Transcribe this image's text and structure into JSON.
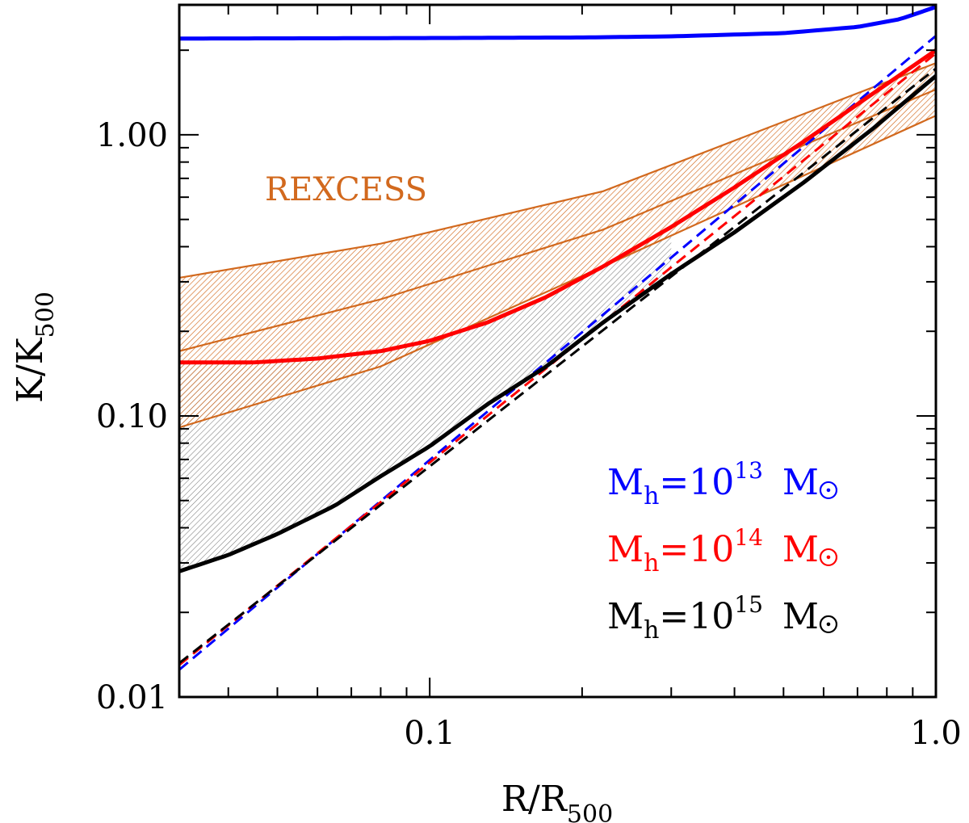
{
  "chart_data": {
    "type": "line",
    "xlabel": {
      "main": "R/R",
      "sub": "500"
    },
    "ylabel": {
      "main": "K/K",
      "sub": "500"
    },
    "x_scale": "log",
    "y_scale": "log",
    "xlim": [
      0.032,
      1.0
    ],
    "ylim": [
      0.01,
      2.9
    ],
    "x_ticks": [
      {
        "value": 0.1,
        "label": "0.1"
      },
      {
        "value": 1.0,
        "label": "1.0"
      }
    ],
    "y_ticks": [
      {
        "value": 0.01,
        "label": "0.01"
      },
      {
        "value": 0.1,
        "label": "0.10"
      },
      {
        "value": 1.0,
        "label": "1.00"
      }
    ],
    "annotation": {
      "text": "REXCESS",
      "color": "#d2691e"
    },
    "rexcess": {
      "color": "#d2691e",
      "x": [
        0.032,
        0.08,
        0.22,
        1.0
      ],
      "upper": [
        0.31,
        0.41,
        0.63,
        1.8
      ],
      "median": [
        0.17,
        0.26,
        0.46,
        1.45
      ],
      "lower": [
        0.091,
        0.15,
        0.34,
        1.17
      ]
    },
    "series": [
      {
        "name": "M_h=10^13 M_sun",
        "color": "#0000ff",
        "solid": {
          "x": [
            0.032,
            0.1,
            0.2,
            0.3,
            0.5,
            0.7,
            0.85,
            1.0
          ],
          "y": [
            2.2,
            2.21,
            2.22,
            2.24,
            2.3,
            2.42,
            2.58,
            2.85
          ]
        },
        "dashed": {
          "x": [
            0.032,
            1.0
          ],
          "y": [
            0.0125,
            2.25
          ]
        }
      },
      {
        "name": "M_h=10^14 M_sun",
        "color": "#ff0000",
        "solid": {
          "x": [
            0.032,
            0.045,
            0.06,
            0.08,
            0.1,
            0.13,
            0.17,
            0.22,
            0.3,
            0.4,
            0.55,
            0.75,
            1.0
          ],
          "y": [
            0.155,
            0.155,
            0.16,
            0.17,
            0.185,
            0.215,
            0.265,
            0.34,
            0.47,
            0.65,
            0.95,
            1.4,
            2.0
          ]
        },
        "dashed": {
          "x": [
            0.032,
            1.0
          ],
          "y": [
            0.013,
            1.95
          ]
        }
      },
      {
        "name": "M_h=10^15 M_sun",
        "color": "#000000",
        "solid": {
          "x": [
            0.032,
            0.04,
            0.05,
            0.065,
            0.08,
            0.1,
            0.13,
            0.17,
            0.22,
            0.3,
            0.4,
            0.55,
            0.75,
            1.0
          ],
          "y": [
            0.028,
            0.032,
            0.038,
            0.048,
            0.061,
            0.078,
            0.11,
            0.15,
            0.215,
            0.32,
            0.45,
            0.68,
            1.05,
            1.62
          ]
        },
        "dashed": {
          "x": [
            0.032,
            1.0
          ],
          "y": [
            0.0132,
            1.72
          ]
        }
      }
    ],
    "shaded_region": {
      "x_from": 0.032,
      "x_to": 0.3,
      "between": [
        "M_h=10^14 M_sun",
        "M_h=10^15 M_sun"
      ]
    },
    "legend": {
      "placement": "bottom-right",
      "entries": [
        {
          "prefix": "M",
          "sub": "h",
          "eq": "=10",
          "exp": "13",
          "unit": "M",
          "color": "#0000ff"
        },
        {
          "prefix": "M",
          "sub": "h",
          "eq": "=10",
          "exp": "14",
          "unit": "M",
          "color": "#ff0000"
        },
        {
          "prefix": "M",
          "sub": "h",
          "eq": "=10",
          "exp": "15",
          "unit": "M",
          "color": "#000000"
        }
      ]
    }
  }
}
